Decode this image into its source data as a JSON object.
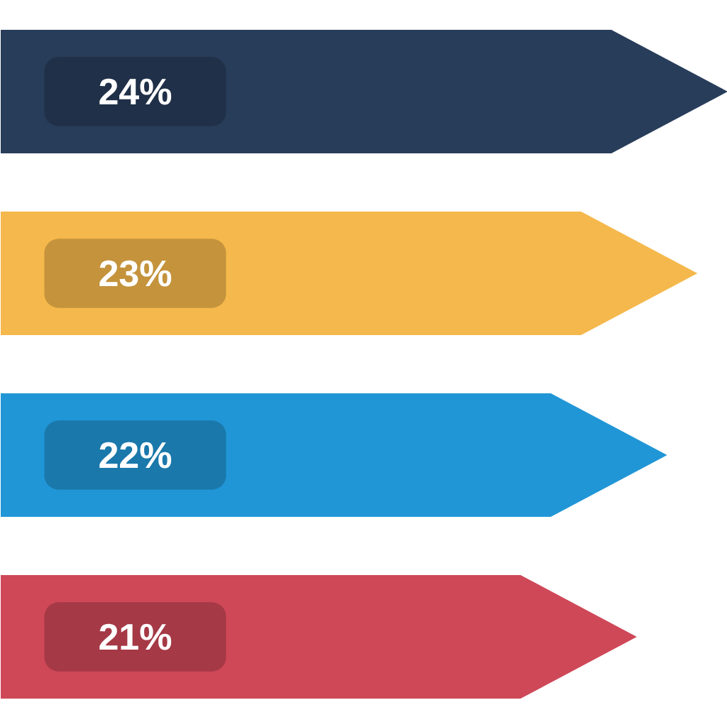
{
  "chart_data": {
    "type": "bar",
    "orientation": "horizontal",
    "categories": [
      null,
      null,
      null,
      null
    ],
    "values": [
      24,
      23,
      22,
      21
    ],
    "colors": [
      "#283d5a",
      "#f5b84c",
      "#2196d6",
      "#cf4858"
    ],
    "data_labels": true,
    "value_labels": [
      "24%",
      "23%",
      "22%",
      "21%"
    ],
    "tick_labels": false,
    "grid": false
  }
}
